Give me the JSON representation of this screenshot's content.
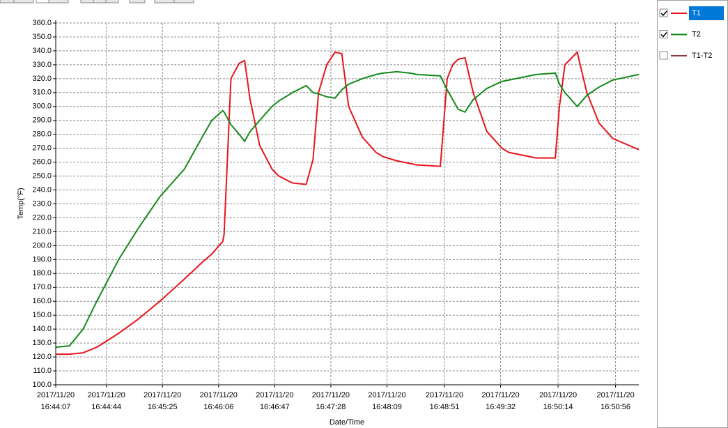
{
  "chart_data": {
    "type": "line",
    "x_label": "Date/Time",
    "y_label": "Temp(°F)",
    "x": [
      "2017/11/20 16:44:07",
      "2017/11/20 16:44:17",
      "2017/11/20 16:44:27",
      "2017/11/20 16:44:37",
      "2017/11/20 16:44:53",
      "2017/11/20 16:45:07",
      "2017/11/20 16:45:23",
      "2017/11/20 16:45:41",
      "2017/11/20 16:45:54",
      "2017/11/20 16:46:01",
      "2017/11/20 16:46:09",
      "2017/11/20 16:46:10",
      "2017/11/20 16:46:15",
      "2017/11/20 16:46:21",
      "2017/11/20 16:46:25",
      "2017/11/20 16:46:29",
      "2017/11/20 16:46:36",
      "2017/11/20 16:46:45",
      "2017/11/20 16:46:50",
      "2017/11/20 16:47:00",
      "2017/11/20 16:47:10",
      "2017/11/20 16:47:15",
      "2017/11/20 16:47:19",
      "2017/11/20 16:47:25",
      "2017/11/20 16:47:31",
      "2017/11/20 16:47:36",
      "2017/11/20 16:47:41",
      "2017/11/20 16:47:51",
      "2017/11/20 16:48:01",
      "2017/11/20 16:48:06",
      "2017/11/20 16:48:16",
      "2017/11/20 16:48:26",
      "2017/11/20 16:48:31",
      "2017/11/20 16:48:48",
      "2017/11/20 16:48:53",
      "2017/11/20 16:48:57",
      "2017/11/20 16:49:01",
      "2017/11/20 16:49:06",
      "2017/11/20 16:49:12",
      "2017/11/20 16:49:22",
      "2017/11/20 16:49:33",
      "2017/11/20 16:49:38",
      "2017/11/20 16:49:53",
      "2017/11/20 16:49:58",
      "2017/11/20 16:50:12",
      "2017/11/20 16:50:15",
      "2017/11/20 16:50:19",
      "2017/11/20 16:50:28",
      "2017/11/20 16:50:35",
      "2017/11/20 16:50:44",
      "2017/11/20 16:50:54",
      "2017/11/20 16:51:13"
    ],
    "series": [
      {
        "name": "T1",
        "color": "#e8141c",
        "checked": true,
        "selected": true,
        "values": [
          122,
          122,
          123,
          127,
          137,
          147,
          160,
          176,
          188,
          194,
          203,
          208,
          320,
          331,
          333,
          305,
          272,
          255,
          250,
          245,
          244,
          262,
          310,
          330,
          339,
          338,
          300,
          278,
          267,
          264,
          261,
          259,
          258,
          257,
          320,
          330,
          334,
          335,
          310,
          282,
          270,
          267,
          264,
          263,
          263,
          300,
          330,
          339,
          310,
          288,
          277,
          269
        ]
      },
      {
        "name": "T2",
        "color": "#138a1a",
        "checked": true,
        "values": [
          127,
          128,
          140,
          160,
          190,
          212,
          235,
          255,
          278,
          290,
          297,
          296,
          287,
          280,
          275,
          282,
          290,
          300,
          304,
          310,
          315,
          310,
          309,
          307,
          306,
          312,
          316,
          320,
          323,
          324,
          325,
          324,
          323,
          322,
          312,
          305,
          298,
          296,
          305,
          313,
          318,
          319,
          322,
          323,
          324,
          316,
          310,
          300,
          308,
          314,
          319,
          323
        ]
      },
      {
        "name": "T1-T2",
        "color": "#8b3a3a",
        "checked": false
      }
    ],
    "xlim": [
      "2017/11/20 16:44:07",
      "2017/11/20 16:51:13"
    ],
    "xticks": [
      "2017/11/20 16:44:07",
      "2017/11/20 16:44:44",
      "2017/11/20 16:45:25",
      "2017/11/20 16:46:06",
      "2017/11/20 16:46:47",
      "2017/11/20 16:47:28",
      "2017/11/20 16:48:09",
      "2017/11/20 16:48:51",
      "2017/11/20 16:49:32",
      "2017/11/20 16:50:14",
      "2017/11/20 16:50:56"
    ],
    "ylim": [
      100,
      360
    ],
    "yticks": [
      {
        "value": 100,
        "label": "100.0"
      },
      {
        "value": 110,
        "label": "110.0"
      },
      {
        "value": 120,
        "label": "120.0"
      },
      {
        "value": 130,
        "label": "130.0"
      },
      {
        "value": 140,
        "label": "140.0"
      },
      {
        "value": 150,
        "label": "150.0"
      },
      {
        "value": 160,
        "label": "160.0"
      },
      {
        "value": 170,
        "label": "170.0"
      },
      {
        "value": 180,
        "label": "180.0"
      },
      {
        "value": 190,
        "label": "190.0"
      },
      {
        "value": 200,
        "label": "200.0"
      },
      {
        "value": 210,
        "label": "210.0"
      },
      {
        "value": 220,
        "label": "220.0"
      },
      {
        "value": 230,
        "label": "230.0"
      },
      {
        "value": 240,
        "label": "240.0"
      },
      {
        "value": 250,
        "label": "250.0"
      },
      {
        "value": 260,
        "label": "260.0"
      },
      {
        "value": 270,
        "label": "270.0"
      },
      {
        "value": 280,
        "label": "280.0"
      },
      {
        "value": 290,
        "label": "290.0"
      },
      {
        "value": 300,
        "label": "300.0"
      },
      {
        "value": 310,
        "label": "310.0"
      },
      {
        "value": 320,
        "label": "320.0"
      },
      {
        "value": 330,
        "label": "330.0"
      },
      {
        "value": 340,
        "label": "340.0"
      },
      {
        "value": 350,
        "label": "350.0"
      },
      {
        "value": 360,
        "label": "360.0"
      }
    ],
    "grid": true
  }
}
